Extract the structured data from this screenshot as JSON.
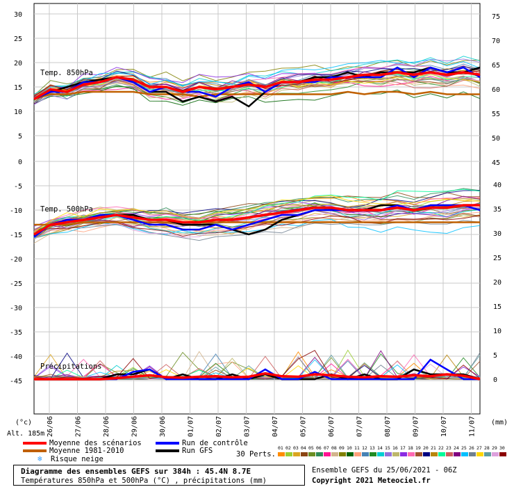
{
  "chart_data": {
    "type": "line",
    "title": "Diagramme des ensembles GEFS sur 384h : 45.4N 8.7E",
    "subtitle": "Températures 850hPa et 500hPa (°C) , précipitations (mm)",
    "altitude": "Alt. 185m",
    "left_unit": "(°c)",
    "right_unit": "(mm)",
    "panels": {
      "t850": {
        "label": "Temp. 850hPa"
      },
      "t500": {
        "label": "Temp. 500hPa"
      },
      "precip": {
        "label": "Précipitations"
      }
    },
    "x_ticks": [
      "26/06",
      "27/06",
      "28/06",
      "29/06",
      "30/06",
      "01/07",
      "02/07",
      "03/07",
      "04/07",
      "05/07",
      "06/07",
      "07/07",
      "08/07",
      "09/07",
      "10/07",
      "11/07"
    ],
    "left_ticks": [
      30,
      25,
      20,
      15,
      10,
      5,
      0,
      -5,
      -10,
      -15,
      -20,
      -25,
      -30,
      -35,
      -40,
      -45
    ],
    "right_ticks_top": [
      75,
      70,
      65,
      60,
      55,
      50,
      45
    ],
    "right_ticks_bottom": [
      40,
      35,
      30,
      25,
      20,
      15,
      10,
      5,
      0
    ],
    "series": [
      {
        "name": "Moyenne des scénarios",
        "color": "#ff0000",
        "t850": [
          12.5,
          14.5,
          14,
          15.5,
          16,
          17,
          16.5,
          15,
          15,
          14,
          15,
          14.5,
          15,
          15.5,
          15,
          16,
          16,
          16.5,
          16.5,
          17,
          17.5,
          17.5,
          18,
          17.5,
          18,
          17.5,
          18,
          17.5
        ],
        "t500": [
          -15,
          -13,
          -12.5,
          -12,
          -11.5,
          -11,
          -11.5,
          -12,
          -12,
          -12.5,
          -12.5,
          -12,
          -12,
          -11.5,
          -11,
          -10.5,
          -10,
          -9.5,
          -9.5,
          -10,
          -10,
          -10,
          -9.5,
          -10,
          -9.5,
          -9.5,
          -9,
          -9
        ],
        "precip": [
          0,
          0,
          0,
          0,
          0,
          0.2,
          0.5,
          0.8,
          0.4,
          0.3,
          0.5,
          0.6,
          0.4,
          0.5,
          1.2,
          0.6,
          0.5,
          1,
          0.8,
          0.5,
          0.4,
          0.6,
          0.5,
          0.8,
          0.6,
          1,
          0.7,
          0
        ]
      },
      {
        "name": "Moyenne 1981-2010",
        "color": "#c06000",
        "t850": [
          12.5,
          13.5,
          13.5,
          14,
          14,
          14,
          14,
          13.5,
          13.5,
          13.5,
          13,
          13.5,
          13.5,
          13.5,
          13.5,
          13.5,
          13.5,
          13.5,
          13.5,
          14,
          13.5,
          14,
          14,
          13.5,
          14,
          13.5,
          13.5,
          13.5
        ],
        "t500": [
          -13,
          -13,
          -13,
          -12.5,
          -12.5,
          -12.5,
          -12.5,
          -12.5,
          -12.5,
          -12.5,
          -12.5,
          -12.5,
          -12.5,
          -12.5,
          -12.5,
          -12.5,
          -12.5,
          -12.5,
          -12.5,
          -12.5,
          -12.5,
          -12.5,
          -12.5,
          -12.5,
          -12.5,
          -12.5,
          -12.5,
          -12.5
        ]
      },
      {
        "name": "Run de contrôle",
        "color": "#0000ff",
        "t850": [
          12.5,
          14,
          14,
          16,
          16,
          17,
          16,
          14,
          15,
          14,
          14,
          13,
          15,
          16,
          14,
          16,
          16,
          16,
          17,
          17,
          17,
          17,
          19,
          17,
          19,
          18,
          19,
          17
        ],
        "t500": [
          -15.5,
          -13,
          -12,
          -12,
          -11,
          -11,
          -12,
          -13,
          -13,
          -14,
          -14,
          -13,
          -14,
          -13,
          -12,
          -11,
          -11,
          -10,
          -10,
          -10,
          -10,
          -10,
          -9,
          -10,
          -9,
          -9,
          -9,
          -10
        ],
        "precip": [
          0,
          0,
          0,
          0,
          0,
          0,
          1.5,
          2,
          0,
          0,
          0,
          0,
          0,
          0,
          2,
          0,
          0,
          1.5,
          0,
          0,
          0,
          0,
          0,
          0,
          4,
          2,
          0,
          0
        ]
      },
      {
        "name": "Run GFS",
        "color": "#000000",
        "t850": [
          12.5,
          14,
          15,
          16,
          16.5,
          17,
          16,
          14,
          14,
          12,
          13,
          12,
          13,
          11,
          14,
          16,
          16,
          17,
          17,
          18,
          17,
          18,
          18,
          18,
          19,
          18,
          18,
          19
        ],
        "t500": [
          -15,
          -13,
          -12,
          -12,
          -11,
          -11,
          -11,
          -12,
          -12,
          -13,
          -13,
          -13,
          -14,
          -15,
          -14,
          -12,
          -11,
          -10,
          -10,
          -10,
          -10,
          -9,
          -9,
          -10,
          -9,
          -9,
          -9,
          -9
        ],
        "precip": [
          0,
          0,
          0,
          0,
          0,
          1,
          1,
          2,
          0,
          1,
          0,
          0,
          1,
          0,
          1,
          0,
          0,
          0,
          1,
          0,
          1,
          0,
          0,
          2,
          1,
          1,
          1,
          0
        ]
      }
    ],
    "legend": {
      "items": [
        "Moyenne des scénarios",
        "Moyenne 1981-2010",
        "Run de contrôle",
        "Run GFS"
      ],
      "snow_risk": "Risque neige",
      "perts_label": "30 Perts.",
      "perts_numbers": [
        "01",
        "02",
        "03",
        "04",
        "05",
        "06",
        "07",
        "08",
        "09",
        "10",
        "11",
        "12",
        "13",
        "14",
        "15",
        "16",
        "17",
        "18",
        "19",
        "20",
        "21",
        "22",
        "23",
        "24",
        "25",
        "26",
        "27",
        "28",
        "29",
        "30"
      ],
      "perts_colors": [
        "#ff8c00",
        "#9acd32",
        "#daa520",
        "#8b4513",
        "#6b8e23",
        "#2e8b57",
        "#ff1493",
        "#d2b48c",
        "#808000",
        "#006400",
        "#ffa07a",
        "#4682b4",
        "#228b22",
        "#00ced1",
        "#9370db",
        "#bdb76b",
        "#8a2be2",
        "#ff69b4",
        "#a0522d",
        "#000080",
        "#b8860b",
        "#00fa9a",
        "#cd5c5c",
        "#800080",
        "#00bfff",
        "#708090",
        "#ffd700",
        "#5f9ea0",
        "#dda0dd",
        "#8b0000"
      ]
    },
    "footer_right": "Ensemble GEFS du 25/06/2021 - 06Z",
    "copyright": "Copyright 2021 Meteociel.fr"
  }
}
